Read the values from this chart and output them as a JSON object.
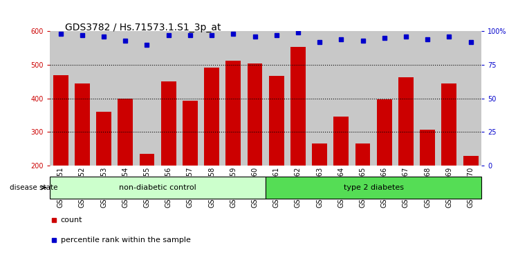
{
  "title": "GDS3782 / Hs.71573.1.S1_3p_at",
  "samples": [
    "GSM524151",
    "GSM524152",
    "GSM524153",
    "GSM524154",
    "GSM524155",
    "GSM524156",
    "GSM524157",
    "GSM524158",
    "GSM524159",
    "GSM524160",
    "GSM524161",
    "GSM524162",
    "GSM524163",
    "GSM524164",
    "GSM524165",
    "GSM524166",
    "GSM524167",
    "GSM524168",
    "GSM524169",
    "GSM524170"
  ],
  "bar_values": [
    470,
    445,
    360,
    400,
    235,
    450,
    393,
    492,
    513,
    505,
    467,
    553,
    265,
    347,
    265,
    398,
    463,
    308,
    445,
    228
  ],
  "percentile_values": [
    98,
    97,
    96,
    93,
    90,
    97,
    97,
    97,
    98,
    96,
    97,
    99,
    92,
    94,
    93,
    95,
    96,
    94,
    96,
    92
  ],
  "bar_color": "#cc0000",
  "dot_color": "#0000cc",
  "ylim_left": [
    200,
    600
  ],
  "ylim_right": [
    0,
    100
  ],
  "yticks_left": [
    200,
    300,
    400,
    500,
    600
  ],
  "yticks_right": [
    0,
    25,
    50,
    75,
    100
  ],
  "grid_lines": [
    300,
    400,
    500
  ],
  "group1_label": "non-diabetic control",
  "group2_label": "type 2 diabetes",
  "group1_count": 10,
  "group2_count": 10,
  "disease_label": "disease state",
  "legend_count_label": "count",
  "legend_percentile_label": "percentile rank within the sample",
  "background_color": "#ffffff",
  "bar_bg_color": "#c8c8c8",
  "group1_color": "#ccffcc",
  "group2_color": "#55dd55",
  "title_fontsize": 10,
  "tick_fontsize": 7,
  "bar_width": 0.7
}
